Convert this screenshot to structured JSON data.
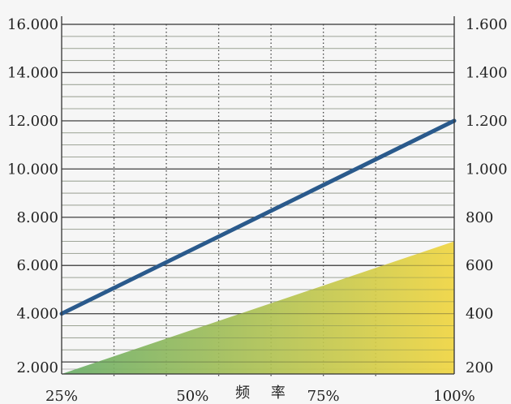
{
  "chart_data": {
    "type": "line",
    "title": "",
    "xlabel": "频 率",
    "x_ticks": [
      "25%",
      "50%",
      "75%",
      "100%"
    ],
    "x_range": [
      25,
      100
    ],
    "y_left": {
      "ticks": [
        "2.000",
        "4.000",
        "6.000",
        "8.000",
        "10.000",
        "12.000",
        "14.000",
        "16.000"
      ],
      "range": [
        1500,
        16000
      ]
    },
    "y_right": {
      "ticks": [
        "200",
        "400",
        "600",
        "800",
        "1.000",
        "1.200",
        "1.400",
        "1.600"
      ],
      "range": [
        150,
        1600
      ]
    },
    "series": [
      {
        "axis": "left",
        "style": "line",
        "color": "#2a5a8c",
        "x": [
          25,
          100
        ],
        "y": [
          4000,
          12000
        ]
      },
      {
        "axis": "right",
        "style": "area",
        "gradient": [
          "#6aae6a",
          "#f0d540"
        ],
        "x": [
          25,
          100
        ],
        "y": [
          150,
          700
        ]
      }
    ],
    "grid": true,
    "minor_grid_color": "#b8b8b8",
    "major_grid_color": "#555555"
  }
}
